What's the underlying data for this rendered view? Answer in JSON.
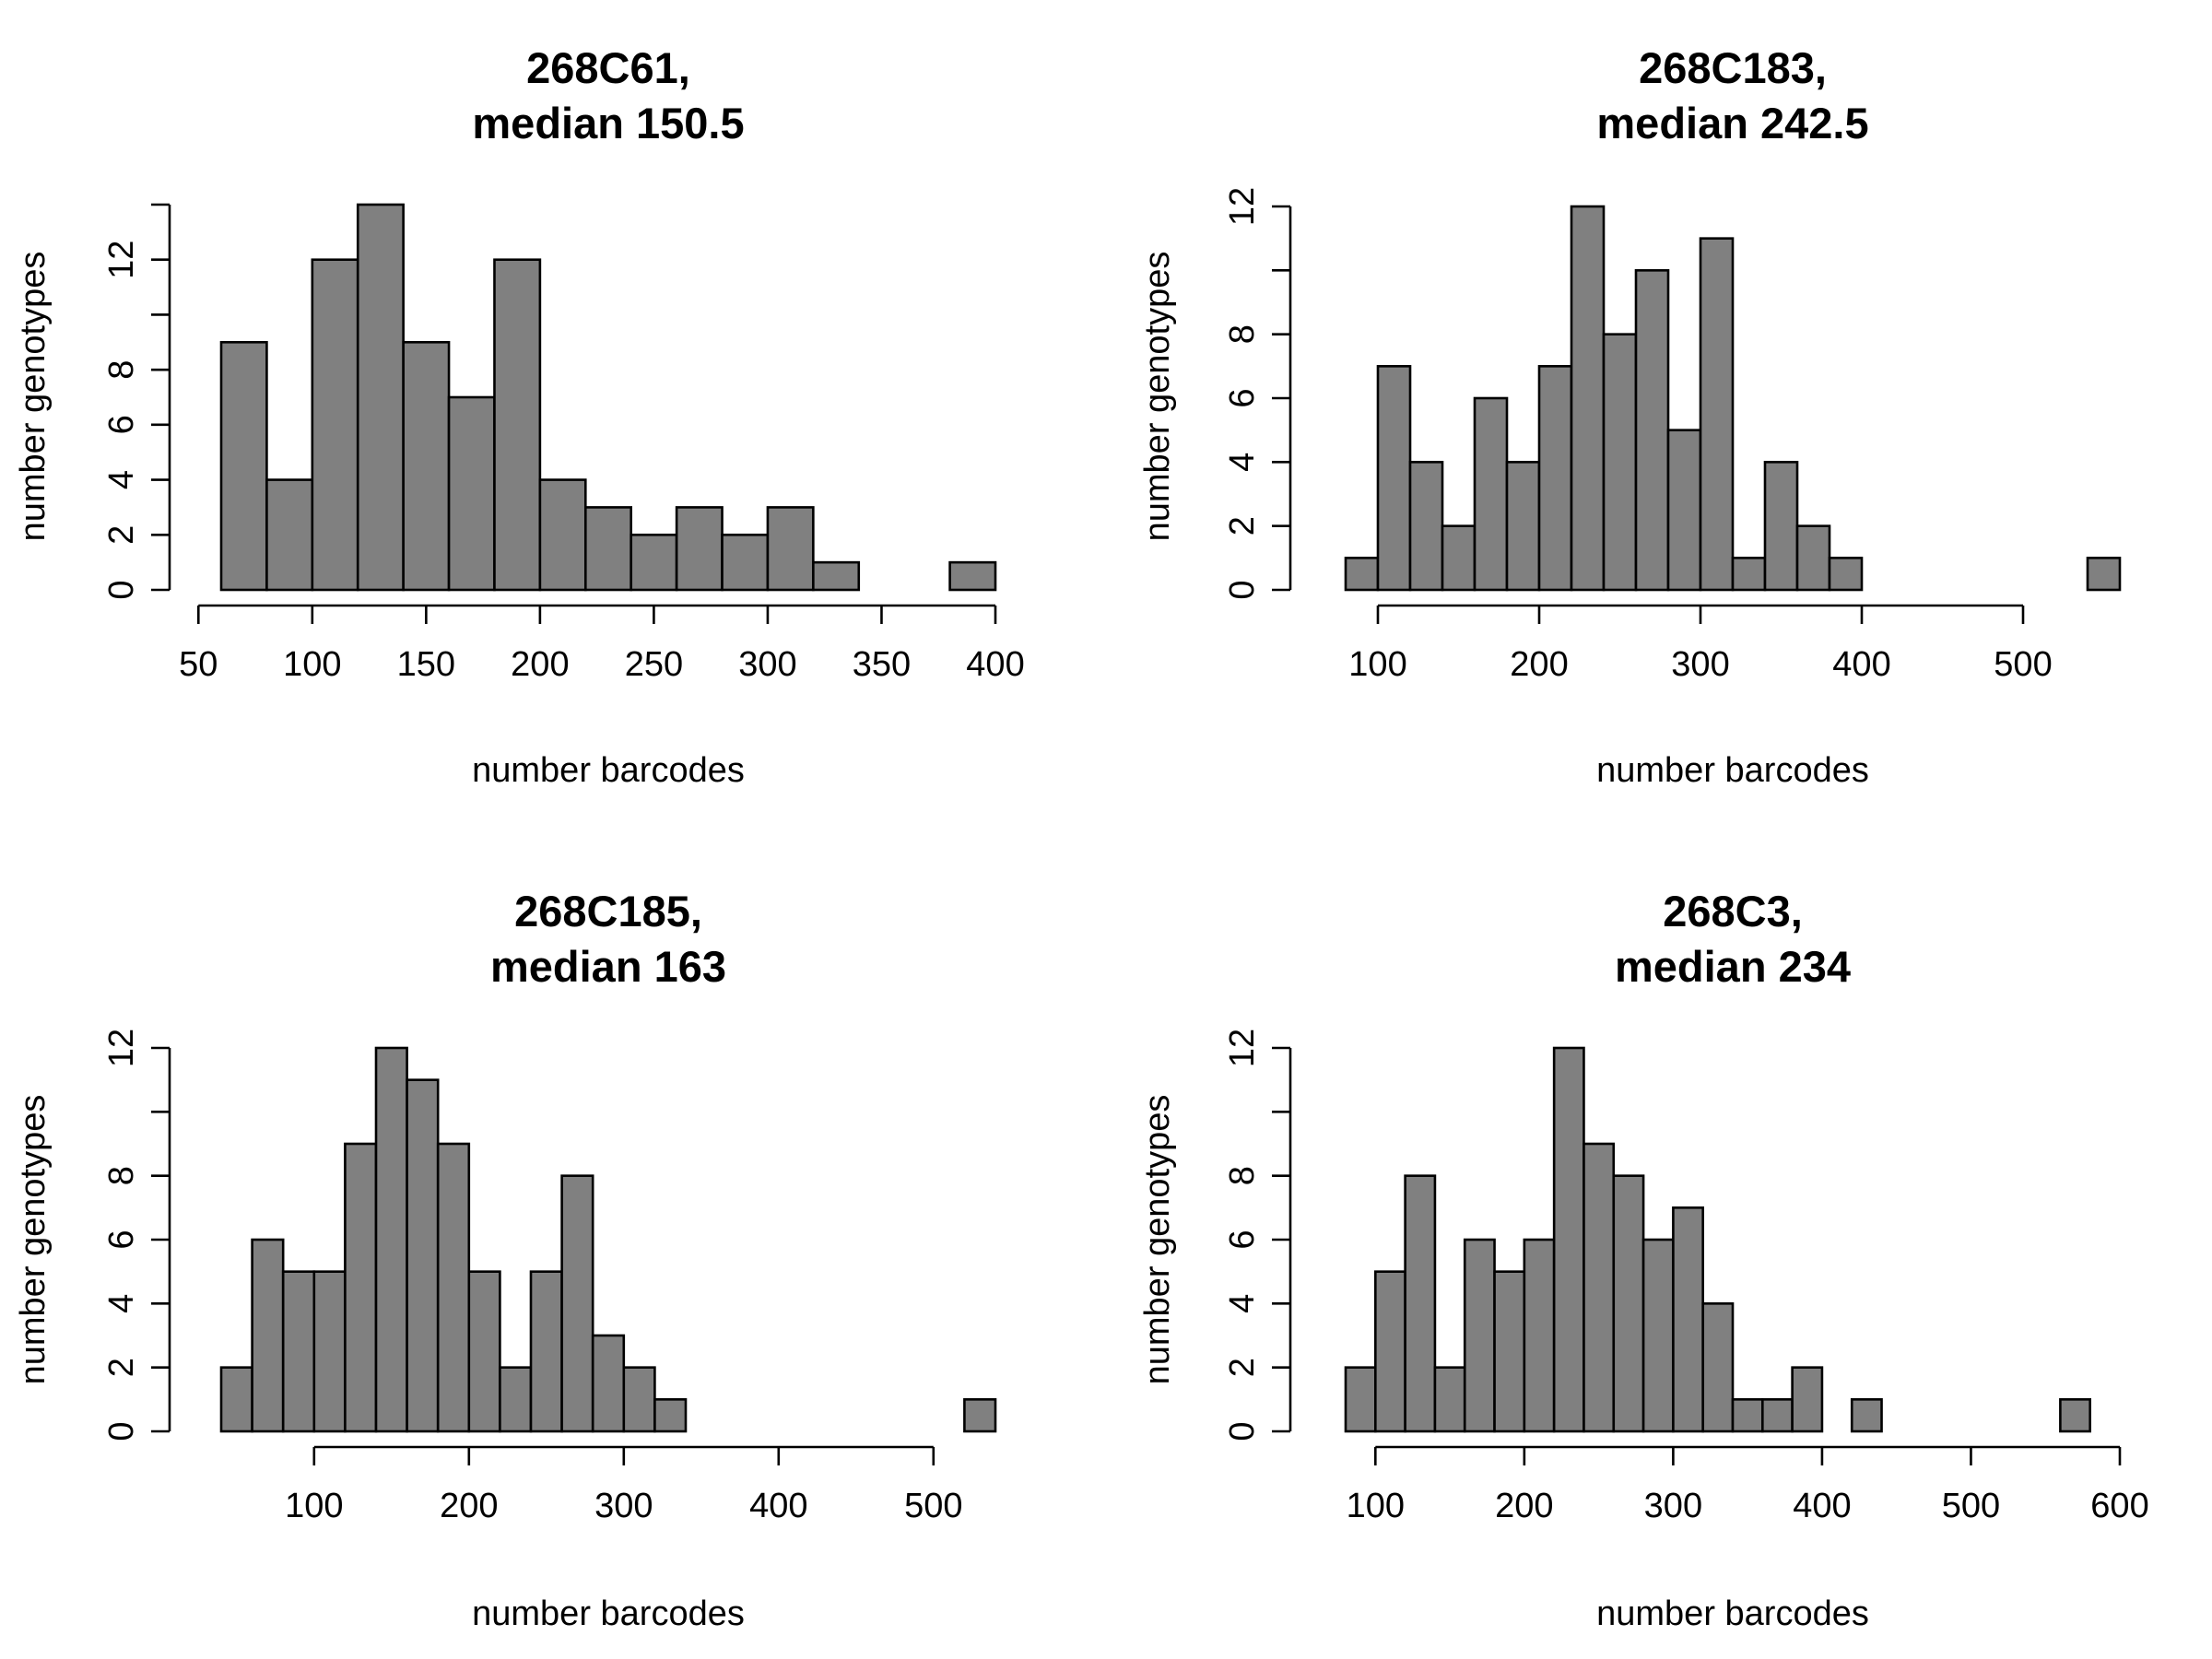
{
  "chart_data": [
    {
      "type": "bar",
      "title_lines": [
        "268C61,",
        "median 150.5"
      ],
      "xlabel": "number barcodes",
      "ylabel": "number genotypes",
      "bin_width": 20,
      "bins_start": [
        60,
        80,
        100,
        120,
        140,
        160,
        180,
        200,
        220,
        240,
        260,
        280,
        300,
        320,
        340,
        360,
        380
      ],
      "values": [
        9,
        4,
        12,
        14,
        9,
        7,
        12,
        4,
        3,
        2,
        3,
        2,
        3,
        1,
        0,
        0,
        1
      ],
      "xlim": [
        60,
        400
      ],
      "ylim": [
        0,
        14
      ],
      "xticks": [
        50,
        100,
        150,
        200,
        250,
        300,
        350,
        400
      ],
      "yticks": [
        0,
        2,
        4,
        6,
        8,
        10,
        12,
        14
      ],
      "ytick_labels": [
        "0",
        "2",
        "4",
        "6",
        "8",
        "",
        "12",
        ""
      ]
    },
    {
      "type": "bar",
      "title_lines": [
        "268C183,",
        "median 242.5"
      ],
      "xlabel": "number barcodes",
      "ylabel": "number genotypes",
      "bin_width": 20,
      "bins_start": [
        80,
        100,
        120,
        140,
        160,
        180,
        200,
        220,
        240,
        260,
        280,
        300,
        320,
        340,
        360,
        380,
        400,
        420,
        440,
        460,
        480,
        500,
        520,
        540
      ],
      "values": [
        1,
        7,
        4,
        2,
        6,
        4,
        7,
        12,
        8,
        10,
        5,
        11,
        1,
        4,
        2,
        1,
        0,
        0,
        0,
        0,
        0,
        0,
        0,
        1
      ],
      "xlim": [
        80,
        560
      ],
      "ylim": [
        0,
        12
      ],
      "xticks": [
        100,
        200,
        300,
        400,
        500
      ],
      "yticks": [
        0,
        2,
        4,
        6,
        8,
        10,
        12
      ],
      "ytick_labels": [
        "0",
        "2",
        "4",
        "6",
        "8",
        "",
        "12"
      ]
    },
    {
      "type": "bar",
      "title_lines": [
        "268C185,",
        "median 163"
      ],
      "xlabel": "number barcodes",
      "ylabel": "number genotypes",
      "bin_width": 20,
      "bins_start": [
        40,
        60,
        80,
        100,
        120,
        140,
        160,
        180,
        200,
        220,
        240,
        260,
        280,
        300,
        320,
        340,
        360,
        380,
        400,
        420,
        440,
        460,
        480,
        500,
        520
      ],
      "values": [
        2,
        6,
        5,
        5,
        9,
        12,
        11,
        9,
        5,
        2,
        5,
        8,
        3,
        2,
        1,
        0,
        0,
        0,
        0,
        0,
        0,
        0,
        0,
        0,
        1
      ],
      "xlim": [
        40,
        540
      ],
      "ylim": [
        0,
        12
      ],
      "xticks": [
        100,
        200,
        300,
        400,
        500
      ],
      "yticks": [
        0,
        2,
        4,
        6,
        8,
        10,
        12
      ],
      "ytick_labels": [
        "0",
        "2",
        "4",
        "6",
        "8",
        "",
        "12"
      ]
    },
    {
      "type": "bar",
      "title_lines": [
        "268C3,",
        "median 234"
      ],
      "xlabel": "number barcodes",
      "ylabel": "number genotypes",
      "bin_width": 20,
      "bins_start": [
        80,
        100,
        120,
        140,
        160,
        180,
        200,
        220,
        240,
        260,
        280,
        300,
        320,
        340,
        360,
        380,
        400,
        420,
        440,
        460,
        480,
        500,
        520,
        540,
        560
      ],
      "values": [
        2,
        5,
        8,
        2,
        6,
        5,
        6,
        12,
        9,
        8,
        6,
        7,
        4,
        1,
        1,
        2,
        0,
        1,
        0,
        0,
        0,
        0,
        0,
        0,
        1
      ],
      "xlim": [
        80,
        600
      ],
      "ylim": [
        0,
        12
      ],
      "xticks": [
        100,
        200,
        300,
        400,
        500,
        600
      ],
      "yticks": [
        0,
        2,
        4,
        6,
        8,
        10,
        12
      ],
      "ytick_labels": [
        "0",
        "2",
        "4",
        "6",
        "8",
        "",
        "12"
      ]
    }
  ],
  "colors": {
    "bar_fill": "#808080",
    "bar_stroke": "#000000",
    "background": "#ffffff"
  }
}
